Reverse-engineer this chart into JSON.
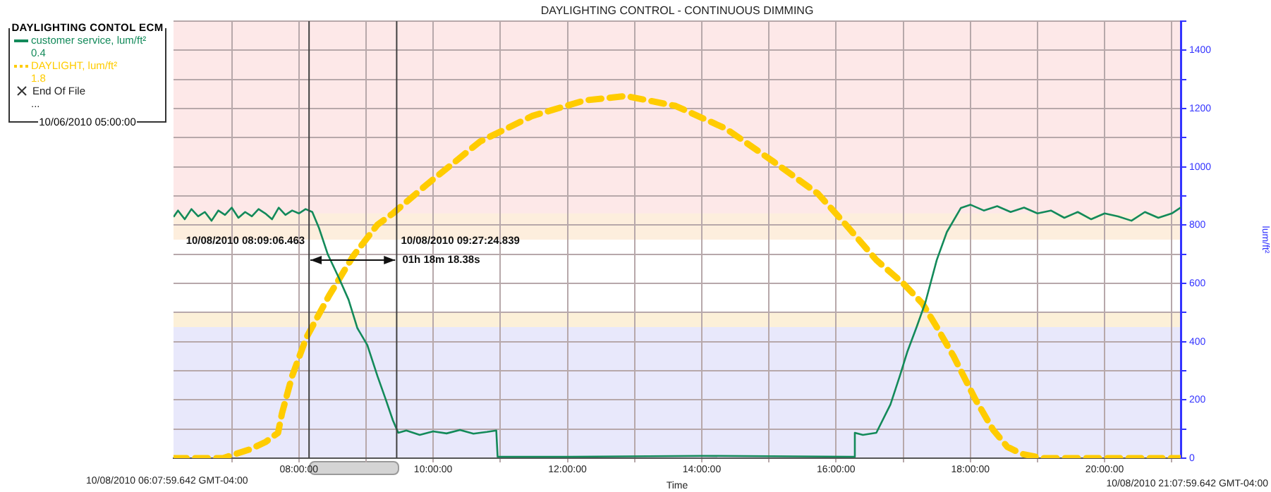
{
  "chart_data": {
    "type": "line",
    "title": "DAYLIGHTING CONTROL - CONTINUOUS DIMMING",
    "xlabel": "Time",
    "ylabel": "lum/ft²",
    "legend_title": "DAYLIGHTING CONTOL ECM",
    "legend": "top left",
    "grid": true,
    "marker": "none",
    "xlim": [
      6.1332,
      21.1332
    ],
    "xticks": [
      {
        "value": 7,
        "label": null
      },
      {
        "value": 8,
        "label": "08:00:00"
      },
      {
        "value": 9,
        "label": null
      },
      {
        "value": 10,
        "label": "10:00:00"
      },
      {
        "value": 11,
        "label": null
      },
      {
        "value": 12,
        "label": "12:00:00"
      },
      {
        "value": 13,
        "label": null
      },
      {
        "value": 14,
        "label": "14:00:00"
      },
      {
        "value": 15,
        "label": null
      },
      {
        "value": 16,
        "label": "16:00:00"
      },
      {
        "value": 17,
        "label": null
      },
      {
        "value": 18,
        "label": "18:00:00"
      },
      {
        "value": 19,
        "label": null
      },
      {
        "value": 20,
        "label": "20:00:00"
      },
      {
        "value": 21,
        "label": null
      }
    ],
    "ylim": [
      0,
      1500
    ],
    "yticks": [
      0,
      {
        "value": 100,
        "label": null
      },
      200,
      {
        "value": 300,
        "label": null
      },
      400,
      {
        "value": 500,
        "label": null
      },
      600,
      {
        "value": 700,
        "label": null
      },
      800,
      {
        "value": 900,
        "label": null
      },
      1000,
      {
        "value": 1100,
        "label": null
      },
      1200,
      {
        "value": 1300,
        "label": null
      },
      1400,
      {
        "value": 1500,
        "label": null
      }
    ],
    "bands": [
      {
        "axis": "y",
        "from": 750,
        "to": 1500,
        "color": "#fde8e8"
      },
      {
        "axis": "y",
        "from": 750,
        "to": 840,
        "color": "#fdeedd"
      },
      {
        "axis": "y",
        "from": 450,
        "to": 500,
        "color": "#fcf0d8"
      },
      {
        "axis": "y",
        "from": 0,
        "to": 450,
        "color": "#e8e8fb"
      }
    ],
    "ref_lines": [
      {
        "axis": "x",
        "value": 8.1518,
        "label": "10/08/2010 08:09:06.463",
        "color": "#404040"
      },
      {
        "axis": "x",
        "value": 9.4569,
        "label": "10/08/2010 09:27:24.839",
        "color": "#404040"
      }
    ],
    "annotations": [
      "0.4",
      "1.8",
      "End Of File",
      "...",
      "10/06/2010 05:00:00",
      "10/08/2010 06:07:59.642 GMT-04:00",
      "10/08/2010 21:07:59.642 GMT-04:00",
      {
        "text": "01h 18m 18.38s",
        "x": 9.4569,
        "y": 680
      }
    ],
    "series": [
      {
        "name": "customer service, lum/ft²",
        "color": "#138a5a",
        "line_style": "solid",
        "x": [
          6.14,
          6.2,
          6.3,
          6.4,
          6.5,
          6.6,
          6.7,
          6.8,
          6.9,
          7.0,
          7.1,
          7.2,
          7.3,
          7.4,
          7.5,
          7.6,
          7.7,
          7.8,
          7.9,
          8.0,
          8.1,
          8.2,
          8.3,
          8.43,
          8.45,
          8.6,
          8.74,
          8.87,
          9.02,
          9.17,
          9.29,
          9.4,
          9.48,
          9.6,
          9.8,
          10.0,
          10.2,
          10.4,
          10.6,
          10.8,
          10.94,
          10.96,
          12.0,
          14.0,
          16.26,
          16.28,
          16.4,
          16.6,
          16.81,
          16.95,
          17.06,
          17.2,
          17.33,
          17.5,
          17.65,
          17.86,
          18.0,
          18.2,
          18.4,
          18.6,
          18.8,
          19.0,
          19.2,
          19.4,
          19.6,
          19.8,
          20.0,
          20.2,
          20.4,
          20.6,
          20.8,
          21.0,
          21.13
        ],
        "values": [
          830,
          850,
          820,
          855,
          830,
          845,
          815,
          850,
          835,
          860,
          825,
          845,
          830,
          855,
          840,
          820,
          860,
          835,
          850,
          840,
          855,
          845,
          790,
          700,
          690,
          617,
          544,
          447,
          388,
          282,
          204,
          130,
          87,
          95,
          80,
          92,
          85,
          97,
          84,
          90,
          95,
          5,
          5,
          8,
          5,
          87,
          80,
          87,
          184,
          282,
          364,
          450,
          534,
          680,
          776,
          859,
          870,
          850,
          865,
          845,
          860,
          840,
          850,
          825,
          845,
          820,
          840,
          830,
          815,
          845,
          825,
          840,
          860
        ]
      },
      {
        "name": "DAYLIGHT, lum/ft²",
        "color": "#ffcc00",
        "line_style": "dashed",
        "x": [
          6.14,
          6.87,
          7.0,
          7.27,
          7.5,
          7.69,
          7.75,
          7.9,
          8.11,
          8.45,
          8.81,
          9.17,
          9.4,
          9.92,
          10.7,
          11.48,
          12.26,
          12.87,
          13.61,
          14.36,
          15.06,
          15.73,
          16.11,
          16.6,
          17.0,
          17.29,
          17.5,
          17.75,
          18.07,
          18.34,
          18.55,
          18.76,
          18.97,
          19.1,
          21.13
        ],
        "values": [
          0,
          0,
          10,
          30,
          55,
          87,
          155,
          282,
          413,
          558,
          694,
          801,
          840,
          942,
          1087,
          1175,
          1228,
          1243,
          1209,
          1131,
          1019,
          908,
          811,
          680,
          600,
          530,
          450,
          350,
          204,
          97,
          39,
          15,
          5,
          0,
          0
        ]
      }
    ]
  }
}
